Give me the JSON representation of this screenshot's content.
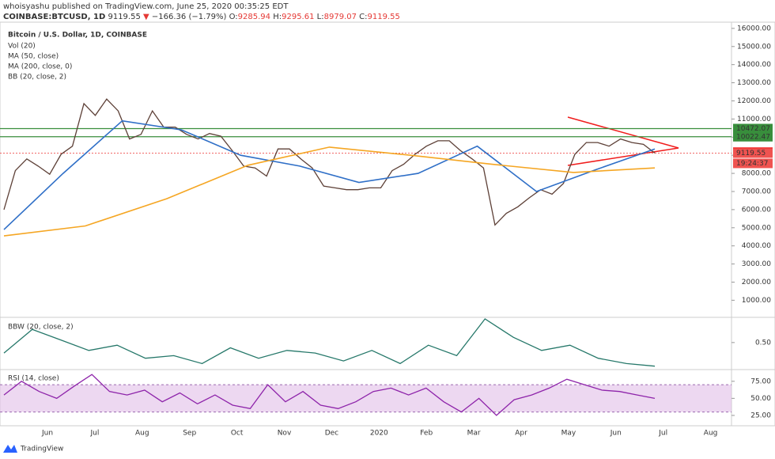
{
  "header": {
    "line1": "whoisyashu published on TradingView.com, June 25, 2020 00:35:25 EDT",
    "symbol": "COINBASE:BTCUSD, 1D",
    "last": 9119.55,
    "arrow": "▼",
    "change": "−166.36 (−1.79%)",
    "o_label": "O:",
    "open": 9285.94,
    "h_label": "H:",
    "high": 9295.61,
    "l_label": "L:",
    "low": 8979.07,
    "c_label": "C:",
    "close": 9119.55
  },
  "chart_data": [
    {
      "type": "line",
      "title": "Bitcoin / U.S. Dollar, 1D, COINBASE",
      "indicators": [
        "Vol (20)",
        "MA (50, close)",
        "MA (200, close, 0)",
        "BB (20, close, 2)"
      ],
      "ylim": [
        100,
        16300
      ],
      "yticks": [
        {
          "value": 1000,
          "label": "1000.00"
        },
        {
          "value": 2000,
          "label": "2000.00"
        },
        {
          "value": 3000,
          "label": "3000.00"
        },
        {
          "value": 4000,
          "label": "4000.00"
        },
        {
          "value": 5000,
          "label": "5000.00"
        },
        {
          "value": 6000,
          "label": "6000.00"
        },
        {
          "value": 7000,
          "label": "7000.00"
        },
        {
          "value": 8000,
          "label": "8000.00"
        },
        {
          "value": 9000,
          "label": "9000.00"
        },
        {
          "value": 10000,
          "label": "10000.00"
        },
        {
          "value": 11000,
          "label": "11000.00"
        },
        {
          "value": 12000,
          "label": "12000.00"
        },
        {
          "value": 13000,
          "label": "13000.00"
        },
        {
          "value": 14000,
          "label": "14000.00"
        },
        {
          "value": 15000,
          "label": "15000.00"
        },
        {
          "value": 16000,
          "label": "16000.00"
        }
      ],
      "series": [
        {
          "name": "Bitcoin / U.S. Dollar, 1D, COINBASE",
          "color": "#5d4037",
          "values": [
            6000,
            8150,
            8800,
            8400,
            7950,
            9050,
            9500,
            11850,
            11200,
            12100,
            11450,
            9900,
            10150,
            11450,
            10550,
            10550,
            10150,
            9900,
            10200,
            10050,
            9250,
            8400,
            8300,
            7850,
            9350,
            9350,
            8800,
            8300,
            7300,
            7200,
            7100,
            7100,
            7200,
            7200,
            8150,
            8500,
            9050,
            9500,
            9800,
            9800,
            9250,
            8800,
            8300,
            5150,
            5800,
            6150,
            6650,
            7100,
            6850,
            7450,
            9050,
            9700,
            9700,
            9500,
            9900,
            9700,
            9600,
            9120
          ]
        },
        {
          "name": "MA (50, close)",
          "color": "#2f6fc7",
          "values": [
            4900,
            8000,
            10900,
            10400,
            9000,
            8400,
            7500,
            8000,
            9500,
            7000,
            8200,
            9350
          ]
        },
        {
          "name": "MA (200, close, 0)",
          "color": "#f5a623",
          "values": [
            4550,
            5100,
            6600,
            8450,
            9450,
            9000,
            8500,
            8050,
            8300
          ]
        }
      ],
      "levels": [
        {
          "value": 10472.07,
          "color": "#388e3c",
          "line": "solid"
        },
        {
          "value": 10022.47,
          "color": "#388e3c",
          "line": "solid"
        },
        {
          "value": 9171.39,
          "color": "#f01c1c",
          "line": "none"
        },
        {
          "value": 9119.55,
          "color": "#ef5350",
          "line": "dotted"
        }
      ],
      "countdown": "19:24:37",
      "xticks": [
        "Jun",
        "Jul",
        "Aug",
        "Sep",
        "Oct",
        "Nov",
        "Dec",
        "2020",
        "Feb",
        "Mar",
        "Apr",
        "May",
        "Jun",
        "Jul",
        "Aug"
      ]
    },
    {
      "type": "line",
      "title": "BBW (20, close, 2)",
      "ylim": [
        0,
        0.95
      ],
      "yticks": [
        {
          "value": 0.5,
          "label": "0.50"
        }
      ],
      "series": [
        {
          "name": "BBW (20, close, 2)",
          "color": "#26786a",
          "values": [
            0.3,
            0.75,
            0.55,
            0.35,
            0.45,
            0.2,
            0.25,
            0.1,
            0.4,
            0.2,
            0.35,
            0.3,
            0.15,
            0.35,
            0.1,
            0.45,
            0.25,
            0.95,
            0.6,
            0.35,
            0.45,
            0.2,
            0.1,
            0.05
          ]
        }
      ]
    },
    {
      "type": "line",
      "title": "RSI (14, close)",
      "ylim": [
        11,
        91
      ],
      "yticks": [
        {
          "value": 25,
          "label": "25.00"
        },
        {
          "value": 50,
          "label": "50.00"
        },
        {
          "value": 75,
          "label": "75.00"
        }
      ],
      "band": [
        30,
        70
      ],
      "series": [
        {
          "name": "RSI (14, close)",
          "color": "#8e24aa",
          "values": [
            55,
            75,
            60,
            50,
            68,
            85,
            60,
            55,
            62,
            45,
            58,
            42,
            55,
            40,
            35,
            70,
            45,
            60,
            40,
            35,
            45,
            60,
            65,
            55,
            65,
            45,
            30,
            50,
            25,
            48,
            55,
            65,
            78,
            70,
            62,
            60,
            55,
            50
          ]
        }
      ]
    }
  ],
  "footer": "TradingView"
}
